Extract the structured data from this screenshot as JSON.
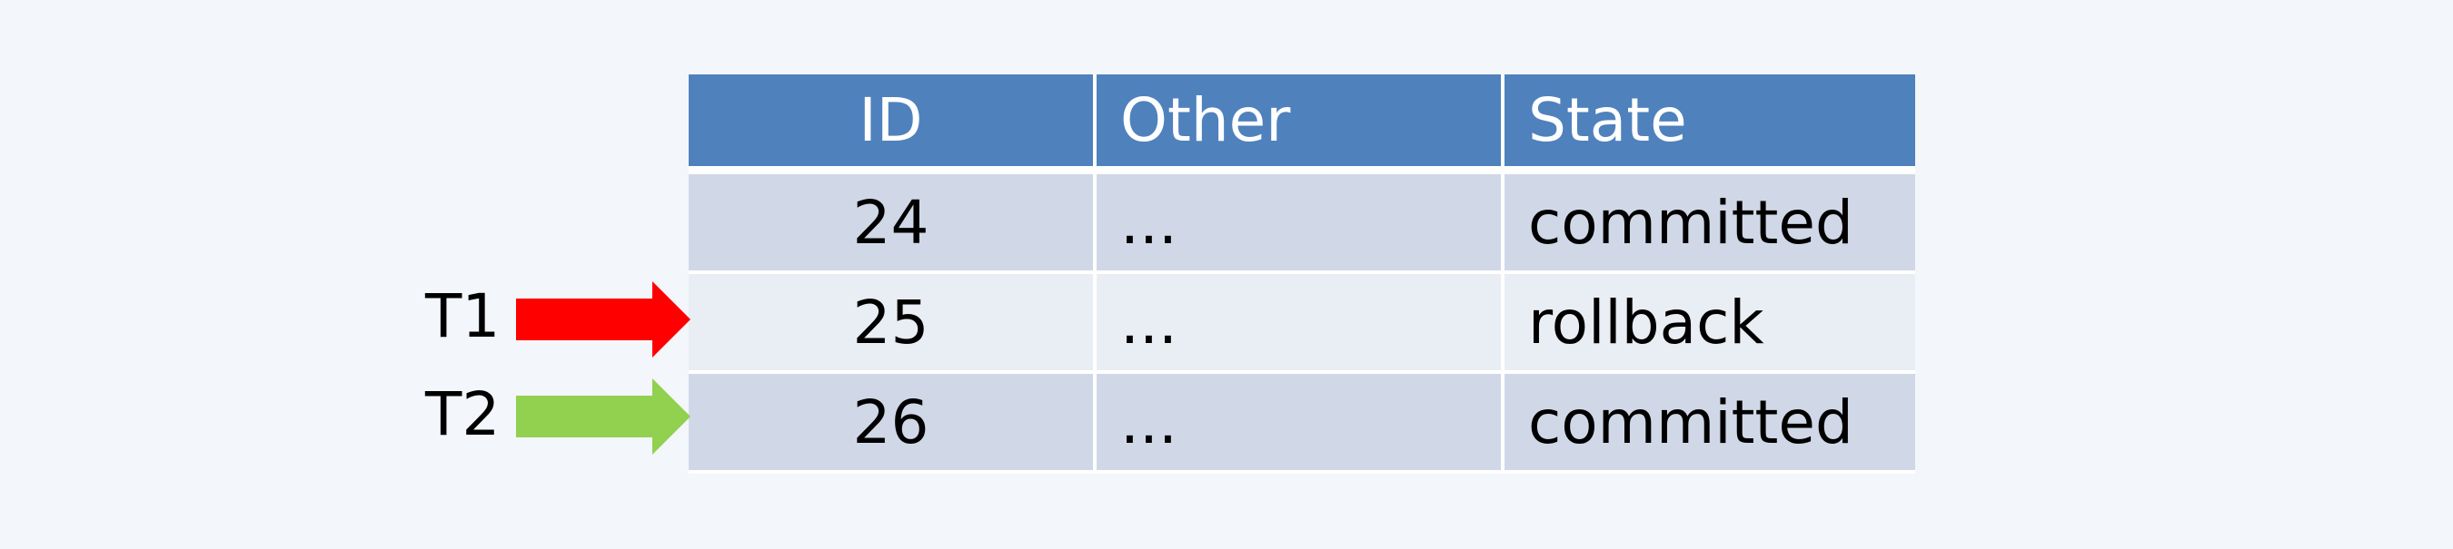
{
  "table": {
    "headers": [
      "ID",
      "Other",
      "State"
    ],
    "rows": [
      {
        "id": "24",
        "other": "...",
        "state": "committed"
      },
      {
        "id": "25",
        "other": "...",
        "state": "rollback"
      },
      {
        "id": "26",
        "other": "...",
        "state": "committed"
      }
    ]
  },
  "pointers": [
    {
      "label": "T1",
      "color": "#ff0000",
      "row_id": "25"
    },
    {
      "label": "T2",
      "color": "#92d050",
      "row_id": "26"
    }
  ],
  "colors": {
    "header_bg": "#4f81bd",
    "row_dark": "#d0d8e8",
    "row_light": "#e9edf4",
    "background": "#f3f6fa"
  }
}
